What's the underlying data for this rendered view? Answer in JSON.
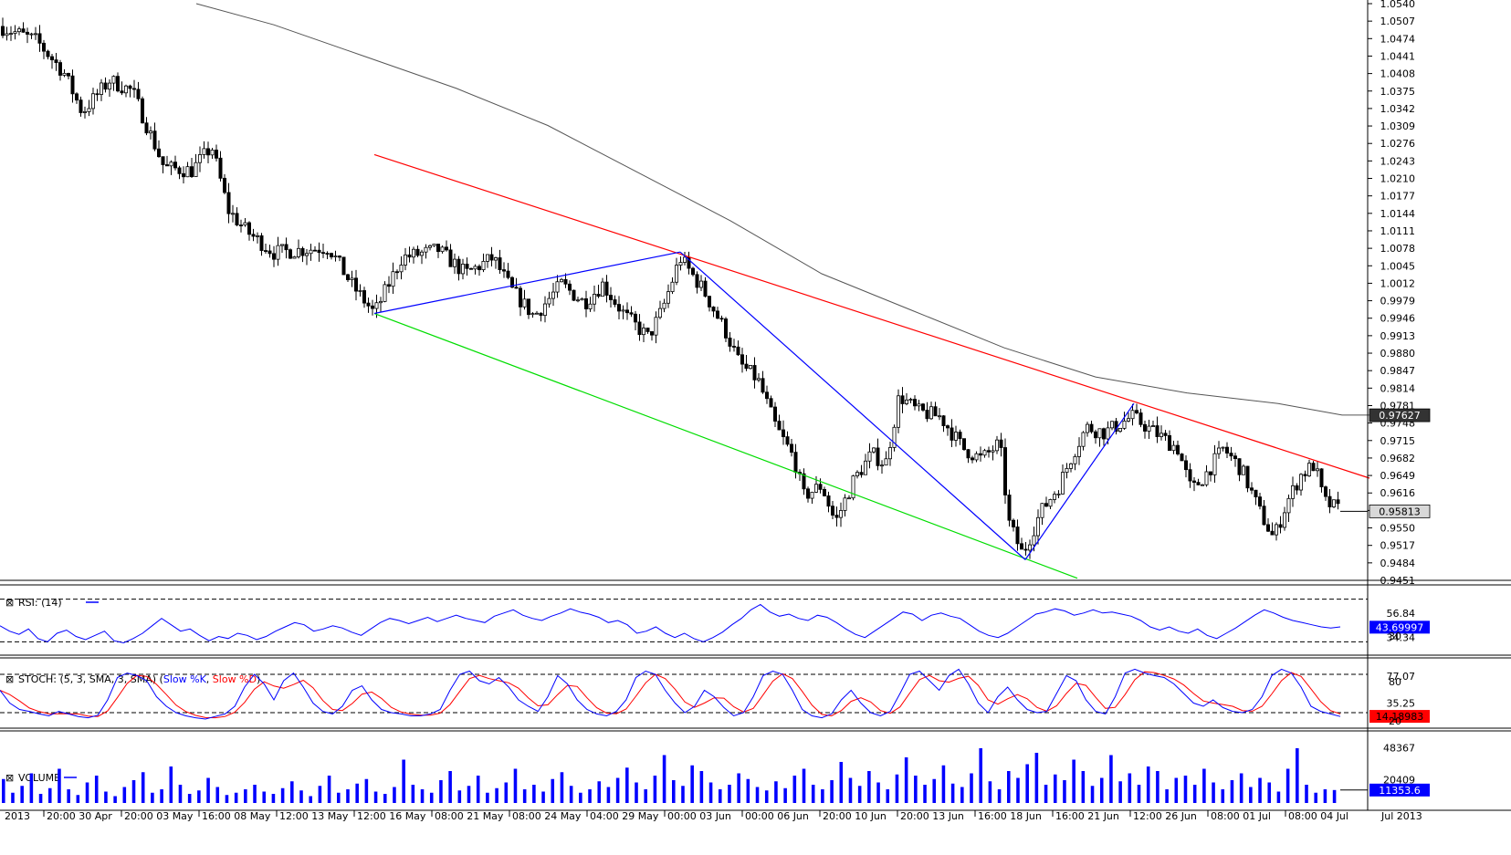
{
  "colors": {
    "background": "#ffffff",
    "candle": "#000000",
    "ma200": "#555555",
    "channel_upper": "#ff0000",
    "channel_lower": "#00dd00",
    "pattern": "#0000ff",
    "rsi_line": "#0000ff",
    "stoch_k": "#0000ff",
    "stoch_d": "#ff0000",
    "volume_bar": "#0000ff",
    "current_price_box": "#d8d8d8",
    "ma_price_box": "#333333",
    "rsi_box": "#0000ff",
    "stoch_box": "#ff0000",
    "volume_box": "#0000ff"
  },
  "chart_data": {
    "type": "candlestick",
    "price_axis": {
      "ticks": [
        "1.0540",
        "1.0507",
        "1.0474",
        "1.0441",
        "1.0408",
        "1.0375",
        "1.0342",
        "1.0309",
        "1.0276",
        "1.0243",
        "1.0210",
        "1.0177",
        "1.0144",
        "1.0111",
        "1.0078",
        "1.0045",
        "1.0012",
        "0.9979",
        "0.9946",
        "0.9913",
        "0.9880",
        "0.9847",
        "0.9814",
        "0.9781",
        "0.9748",
        "0.9715",
        "0.9682",
        "0.9649",
        "0.9616",
        "0.9583",
        "0.9550",
        "0.9517",
        "0.9484",
        "0.9451"
      ],
      "range": [
        0.9451,
        1.054
      ],
      "current_price": "0.95813",
      "ma_price": "0.97627"
    },
    "time_axis": {
      "labels": [
        "2013",
        "20:00 30 Apr",
        "20:00 03 May",
        "16:00 08 May",
        "12:00 13 May",
        "12:00 16 May",
        "08:00 21 May",
        "08:00 24 May",
        "04:00 29 May",
        "00:00 03 Jun",
        "00:00 06 Jun",
        "20:00 10 Jun",
        "20:00 13 Jun",
        "16:00 18 Jun",
        "16:00 21 Jun",
        "12:00 26 Jun",
        "08:00 01 Jul",
        "08:00 04 Jul",
        "Jul 2013"
      ]
    },
    "price_path": [
      [
        0,
        1.0497
      ],
      [
        40,
        1.047
      ],
      [
        70,
        1.041
      ],
      [
        90,
        1.0335
      ],
      [
        120,
        1.0395
      ],
      [
        145,
        1.0375
      ],
      [
        180,
        1.023
      ],
      [
        210,
        1.0225
      ],
      [
        232,
        1.027
      ],
      [
        250,
        1.015
      ],
      [
        270,
        1.011
      ],
      [
        300,
        1.007
      ],
      [
        330,
        1.0075
      ],
      [
        360,
        1.008
      ],
      [
        385,
        1.001
      ],
      [
        410,
        0.9955
      ],
      [
        440,
        1.006
      ],
      [
        480,
        1.0075
      ],
      [
        510,
        1.003
      ],
      [
        540,
        1.006
      ],
      [
        560,
        1.0
      ],
      [
        585,
        0.995
      ],
      [
        615,
        1.001
      ],
      [
        640,
        0.9975
      ],
      [
        660,
        1.001
      ],
      [
        685,
        0.995
      ],
      [
        710,
        0.991
      ],
      [
        725,
        0.996
      ],
      [
        745,
        1.006
      ],
      [
        770,
        1.0
      ],
      [
        795,
        0.992
      ],
      [
        810,
        0.986
      ],
      [
        830,
        0.983
      ],
      [
        850,
        0.974
      ],
      [
        870,
        0.968
      ],
      [
        880,
        0.961
      ],
      [
        900,
        0.963
      ],
      [
        915,
        0.956
      ],
      [
        935,
        0.964
      ],
      [
        955,
        0.969
      ],
      [
        970,
        0.967
      ],
      [
        985,
        0.98
      ],
      [
        1005,
        0.977
      ],
      [
        1030,
        0.976
      ],
      [
        1055,
        0.97
      ],
      [
        1075,
        0.968
      ],
      [
        1095,
        0.971
      ],
      [
        1105,
        0.956
      ],
      [
        1120,
        0.95
      ],
      [
        1140,
        0.958
      ],
      [
        1160,
        0.963
      ],
      [
        1175,
        0.969
      ],
      [
        1190,
        0.974
      ],
      [
        1210,
        0.973
      ],
      [
        1240,
        0.976
      ],
      [
        1265,
        0.973
      ],
      [
        1290,
        0.97
      ],
      [
        1305,
        0.962
      ],
      [
        1320,
        0.965
      ],
      [
        1340,
        0.97
      ],
      [
        1360,
        0.966
      ],
      [
        1380,
        0.958
      ],
      [
        1395,
        0.953
      ],
      [
        1410,
        0.96
      ],
      [
        1425,
        0.965
      ],
      [
        1440,
        0.967
      ],
      [
        1450,
        0.96
      ],
      [
        1470,
        0.9581
      ]
    ],
    "ma200": [
      [
        215,
        1.054
      ],
      [
        300,
        1.05
      ],
      [
        400,
        1.044
      ],
      [
        500,
        1.038
      ],
      [
        600,
        1.031
      ],
      [
        700,
        1.022
      ],
      [
        800,
        1.013
      ],
      [
        900,
        1.003
      ],
      [
        1000,
        0.996
      ],
      [
        1100,
        0.989
      ],
      [
        1200,
        0.9835
      ],
      [
        1300,
        0.9805
      ],
      [
        1400,
        0.9785
      ],
      [
        1470,
        0.9763
      ],
      [
        1500,
        0.9763
      ]
    ],
    "channel_upper": [
      [
        410,
        1.0255
      ],
      [
        1500,
        0.9644
      ]
    ],
    "channel_lower": [
      [
        410,
        0.9955
      ],
      [
        1180,
        0.9455
      ]
    ],
    "pattern_lines": [
      [
        [
          410,
          0.9955
        ],
        [
          745,
          1.0071
        ]
      ],
      [
        [
          745,
          1.0071
        ],
        [
          1123,
          0.949
        ]
      ],
      [
        [
          1123,
          0.949
        ],
        [
          1242,
          0.9785
        ]
      ]
    ],
    "rsi": {
      "label": "RSI: (14)",
      "period": 14,
      "levels": [
        70,
        30
      ],
      "level_label": "30",
      "axis_labels": [
        "56.84",
        "34.34"
      ],
      "current": "43.69997",
      "range": [
        20,
        80
      ],
      "values": [
        45,
        40,
        37,
        42,
        33,
        30,
        38,
        41,
        35,
        32,
        36,
        40,
        31,
        29,
        33,
        38,
        45,
        52,
        46,
        40,
        42,
        36,
        31,
        35,
        33,
        38,
        36,
        32,
        35,
        40,
        44,
        48,
        46,
        40,
        42,
        45,
        43,
        39,
        36,
        42,
        48,
        52,
        50,
        47,
        50,
        53,
        49,
        52,
        55,
        52,
        50,
        48,
        54,
        57,
        60,
        55,
        52,
        50,
        54,
        57,
        61,
        58,
        56,
        53,
        48,
        50,
        46,
        38,
        40,
        44,
        38,
        34,
        38,
        33,
        30,
        34,
        39,
        46,
        52,
        60,
        65,
        58,
        54,
        56,
        52,
        50,
        55,
        53,
        48,
        42,
        37,
        34,
        40,
        46,
        52,
        58,
        56,
        50,
        55,
        57,
        54,
        52,
        46,
        40,
        36,
        34,
        38,
        44,
        50,
        56,
        58,
        61,
        59,
        55,
        57,
        60,
        57,
        58,
        56,
        54,
        50,
        44,
        41,
        44,
        40,
        38,
        42,
        36,
        33,
        38,
        43,
        49,
        55,
        60,
        57,
        53,
        50,
        48,
        46,
        44,
        43,
        44
      ]
    },
    "stochastic": {
      "label": "STOCH: (5, 3, SMA, 3, SMA) (Slow %K, Slow %D)",
      "parameters": [
        5,
        3,
        "SMA",
        3,
        "SMA"
      ],
      "series_names": [
        "Slow %K",
        "Slow %D"
      ],
      "levels": [
        80,
        20
      ],
      "level_labels": [
        "80",
        "20"
      ],
      "axis_labels": [
        "77.07",
        "35.25"
      ],
      "current": "14.18983",
      "range": [
        0,
        100
      ],
      "k": [
        55,
        35,
        25,
        22,
        18,
        15,
        22,
        18,
        14,
        12,
        16,
        40,
        75,
        82,
        78,
        70,
        45,
        30,
        20,
        15,
        12,
        10,
        14,
        18,
        30,
        60,
        80,
        65,
        40,
        70,
        82,
        60,
        35,
        22,
        18,
        30,
        55,
        62,
        40,
        25,
        20,
        18,
        15,
        15,
        18,
        25,
        55,
        80,
        85,
        70,
        65,
        75,
        60,
        40,
        30,
        22,
        45,
        78,
        65,
        40,
        25,
        18,
        15,
        22,
        40,
        75,
        85,
        80,
        55,
        35,
        20,
        30,
        55,
        45,
        28,
        15,
        20,
        45,
        78,
        85,
        80,
        55,
        25,
        15,
        12,
        18,
        40,
        55,
        35,
        20,
        15,
        22,
        50,
        80,
        85,
        70,
        55,
        78,
        88,
        65,
        35,
        20,
        45,
        60,
        40,
        25,
        20,
        22,
        50,
        78,
        70,
        40,
        22,
        18,
        45,
        82,
        88,
        82,
        78,
        75,
        65,
        50,
        35,
        30,
        40,
        28,
        22,
        20,
        25,
        45,
        78,
        88,
        82,
        60,
        30,
        22,
        18,
        14
      ]
    },
    "volume": {
      "label": "VOLUME",
      "axis_labels": [
        "48367",
        "20409"
      ],
      "current": "11353.6",
      "range": [
        0,
        60000
      ],
      "values": [
        21000,
        9000,
        15000,
        26000,
        8000,
        13000,
        30000,
        12000,
        7000,
        18000,
        24000,
        10000,
        6000,
        14000,
        20000,
        27000,
        9000,
        12000,
        32000,
        16000,
        8000,
        11000,
        22000,
        14000,
        7000,
        9000,
        12000,
        16000,
        10000,
        8000,
        13000,
        19000,
        11000,
        6000,
        15000,
        24000,
        9000,
        12000,
        17000,
        21000,
        10000,
        8000,
        14000,
        38000,
        16000,
        12000,
        9000,
        20000,
        28000,
        11000,
        15000,
        24000,
        9000,
        13000,
        18000,
        30000,
        12000,
        16000,
        10000,
        21000,
        27000,
        15000,
        9000,
        12000,
        19000,
        14000,
        22000,
        31000,
        18000,
        12000,
        24000,
        42000,
        20000,
        15000,
        33000,
        28000,
        18000,
        12000,
        16000,
        26000,
        21000,
        14000,
        11000,
        19000,
        13000,
        24000,
        30000,
        16000,
        12000,
        20000,
        36000,
        22000,
        15000,
        28000,
        18000,
        12000,
        25000,
        40000,
        24000,
        16000,
        21000,
        33000,
        17000,
        14000,
        26000,
        48000,
        19000,
        12000,
        28000,
        22000,
        34000,
        44000,
        16000,
        25000,
        20000,
        38000,
        28000,
        15000,
        22000,
        42000,
        19000,
        26000,
        16000,
        32000,
        28000,
        12000,
        22000,
        24000,
        16000,
        30000,
        18000,
        12000,
        20000,
        26000,
        14000,
        22000,
        18000,
        10000,
        30000,
        48000,
        16000,
        9000,
        12000,
        11354
      ]
    }
  }
}
